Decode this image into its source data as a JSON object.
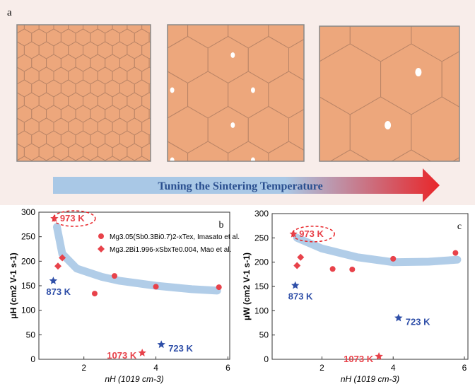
{
  "panel_label": "a",
  "arrow_text": "Tuning the Sintering Temperature",
  "chart_data": [
    {
      "type": "scatter",
      "panel_label": "b",
      "ylabel": "μH (cm2 V-1 s-1)",
      "xlabel": "nH (1019 cm-3)",
      "xlim": [
        0.75,
        6.05
      ],
      "ylim": [
        0,
        300
      ],
      "xticks": [
        2,
        4,
        6
      ],
      "yticks": [
        0,
        50,
        100,
        150,
        200,
        250,
        300
      ],
      "series": [
        {
          "name": "Mg3.05(Sb0.3Bi0.7)2-xTex, Imasato et al.",
          "marker": "circle",
          "color": "#e8424a",
          "x": [
            2.3,
            2.85,
            4.0,
            5.75
          ],
          "values": [
            134,
            170,
            148,
            147
          ]
        },
        {
          "name": "Mg3.2Bi1.996-xSbxTe0.004, Mao et al.",
          "marker": "diamond",
          "color": "#e8424a",
          "x": [
            1.28,
            1.4
          ],
          "values": [
            190,
            207
          ]
        }
      ],
      "stars": [
        {
          "label": "973 K",
          "color": "#e8424a",
          "x": 1.18,
          "y": 287
        },
        {
          "label": "873 K",
          "color": "#2f4fa8",
          "x": 1.15,
          "y": 160
        },
        {
          "label": "1073 K",
          "color": "#e8424a",
          "x": 3.62,
          "y": 13
        },
        {
          "label": "723 K",
          "color": "#2f4fa8",
          "x": 4.15,
          "y": 30
        }
      ],
      "fit": {
        "color": "#a9c8e6",
        "x": [
          1.25,
          1.4,
          1.8,
          2.5,
          3,
          4,
          5,
          5.7
        ],
        "values": [
          270,
          215,
          185,
          168,
          160,
          150,
          143,
          140
        ]
      }
    },
    {
      "type": "scatter",
      "panel_label": "c",
      "ylabel": "μW (cm2 V-1 s-1)",
      "xlabel": "nH (1019 cm-3)",
      "xlim": [
        0.6,
        6.1
      ],
      "ylim": [
        0,
        300
      ],
      "xticks": [
        2,
        4,
        6
      ],
      "yticks": [
        0,
        50,
        100,
        150,
        200,
        250,
        300
      ],
      "series": [
        {
          "marker": "circle",
          "color": "#e8424a",
          "x": [
            2.3,
            2.85,
            4.0,
            5.75
          ],
          "values": [
            186,
            185,
            207,
            219
          ]
        },
        {
          "marker": "diamond",
          "color": "#e8424a",
          "x": [
            1.3,
            1.4
          ],
          "values": [
            193,
            210
          ]
        }
      ],
      "stars": [
        {
          "label": "973 K",
          "color": "#e8424a",
          "x": 1.2,
          "y": 258
        },
        {
          "label": "873 K",
          "color": "#2f4fa8",
          "x": 1.25,
          "y": 152
        },
        {
          "label": "1073 K",
          "color": "#e8424a",
          "x": 3.6,
          "y": 6
        },
        {
          "label": "723 K",
          "color": "#2f4fa8",
          "x": 4.15,
          "y": 85
        }
      ],
      "fit": {
        "color": "#a9c8e6",
        "x": [
          1.3,
          2,
          3,
          4,
          5,
          5.8
        ],
        "values": [
          250,
          228,
          210,
          200,
          201,
          205
        ]
      }
    }
  ]
}
